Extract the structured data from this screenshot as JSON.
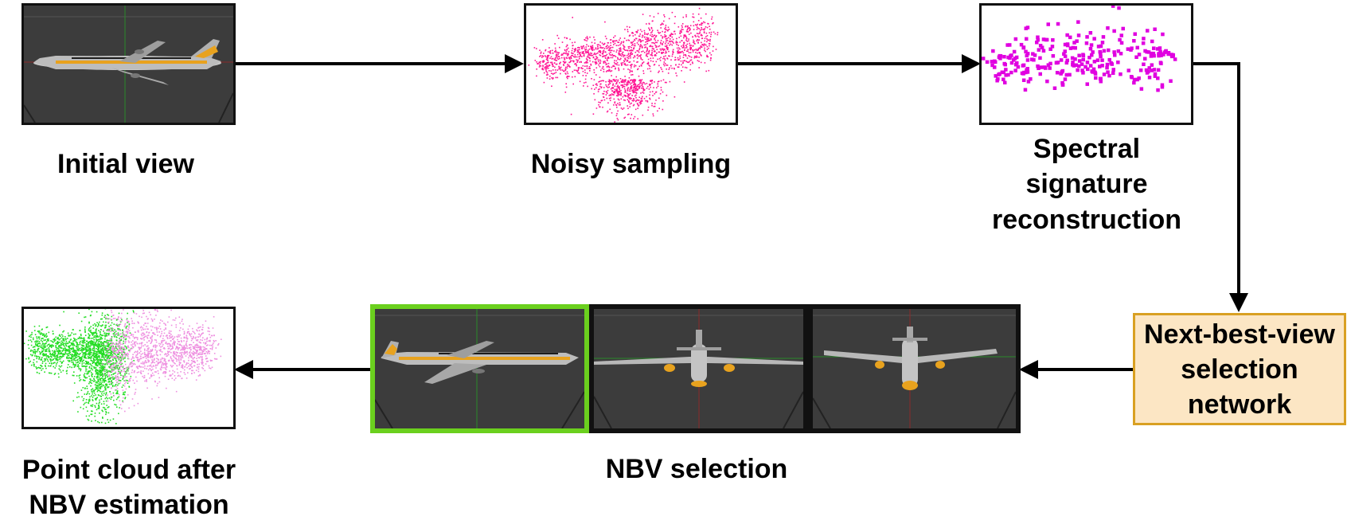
{
  "stages": {
    "initial_view": "Initial view",
    "noisy_sampling": "Noisy sampling",
    "spectral": [
      "Spectral",
      "signature",
      "reconstruction"
    ],
    "network": [
      "Next-best-view",
      "selection",
      "network"
    ],
    "nbv_selection": "NBV selection",
    "point_cloud": [
      "Point cloud after",
      "NBV estimation"
    ]
  },
  "colors": {
    "noisy_points": "#ff1493",
    "spectral_points": "#e000e0",
    "cloud_green": "#22dd22",
    "cloud_pink": "#ee90e0",
    "selected_frame": "#6bd01e",
    "network_fill": "#fce6c4",
    "network_border": "#d9a022",
    "viewport_bg": "#3c3c3c"
  }
}
